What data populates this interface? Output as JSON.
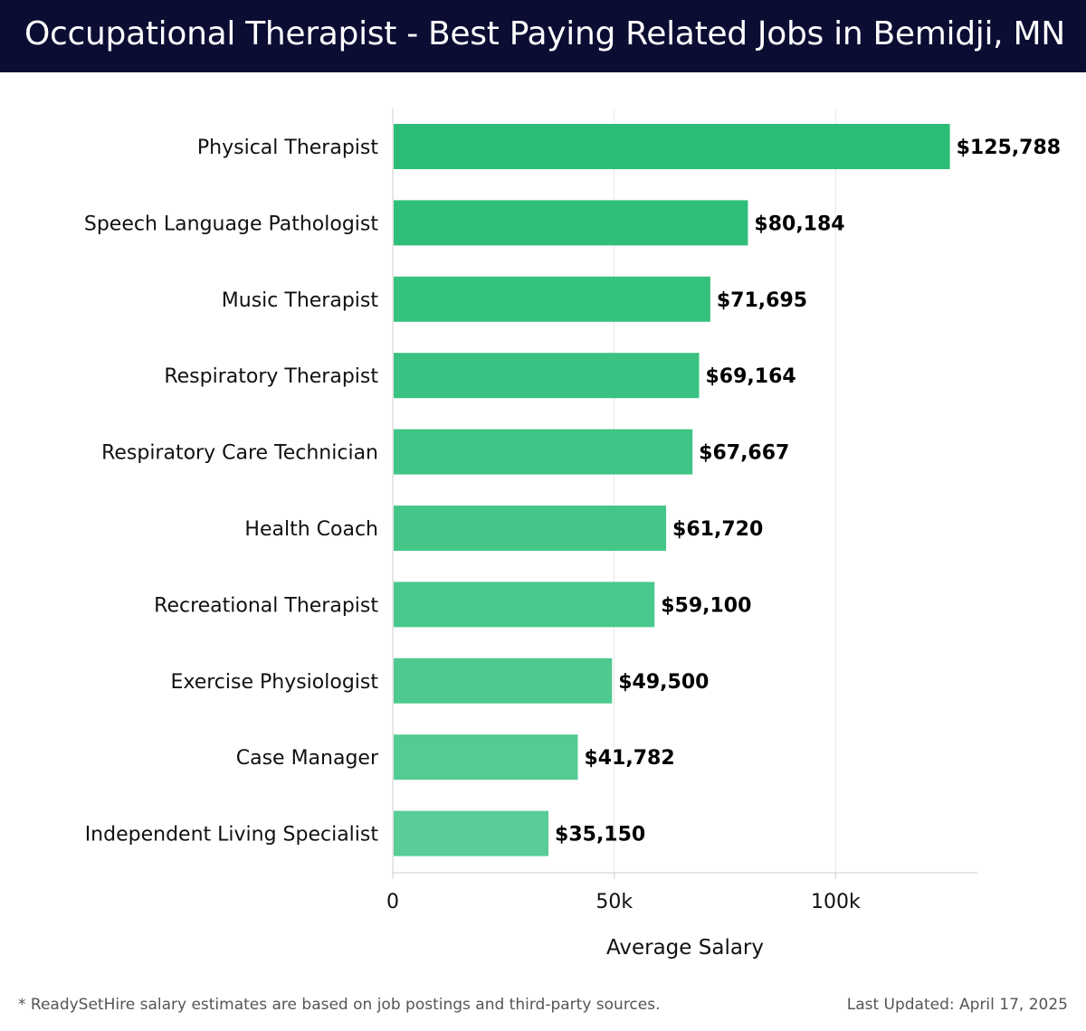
{
  "header": {
    "title": "Occupational Therapist - Best Paying Related Jobs in Bemidji, MN"
  },
  "chart_data": {
    "type": "bar",
    "orientation": "horizontal",
    "categories": [
      "Physical Therapist",
      "Speech Language Pathologist",
      "Music Therapist",
      "Respiratory Therapist",
      "Respiratory Care Technician",
      "Health Coach",
      "Recreational Therapist",
      "Exercise Physiologist",
      "Case Manager",
      "Independent Living Specialist"
    ],
    "values": [
      125788,
      80184,
      71695,
      69164,
      67667,
      61720,
      59100,
      49500,
      41782,
      35150
    ],
    "value_labels": [
      "$125,788",
      "$80,184",
      "$71,695",
      "$69,164",
      "$67,667",
      "$61,720",
      "$59,100",
      "$49,500",
      "$41,782",
      "$35,150"
    ],
    "xlabel": "Average Salary",
    "ylabel": "",
    "xlim": [
      0,
      132000
    ],
    "x_ticks": [
      0,
      50000,
      100000
    ],
    "x_tick_labels": [
      "0",
      "50k",
      "100k"
    ],
    "grid": true,
    "bar_color_top": "#2bbd77",
    "bar_color_bottom": "#58cd97"
  },
  "footer": {
    "footnote": "* ReadySetHire salary estimates are based on job postings and third-party sources.",
    "updated": "Last Updated: April 17, 2025"
  }
}
